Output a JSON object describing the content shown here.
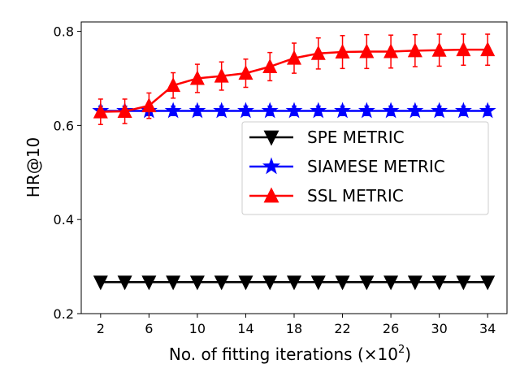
{
  "chart_data": {
    "type": "line",
    "xlabel": "No. of fitting iterations (×10",
    "xlabel_sup": "2",
    "xlabel_close": ")",
    "ylabel": "HR@10",
    "x": [
      2,
      4,
      6,
      8,
      10,
      12,
      14,
      16,
      18,
      20,
      22,
      24,
      26,
      28,
      30,
      32,
      34
    ],
    "xticks": [
      "2",
      "6",
      "10",
      "14",
      "18",
      "22",
      "26",
      "30",
      "34"
    ],
    "yticks": [
      "0.2",
      "0.4",
      "0.6",
      "0.8"
    ],
    "ylim": [
      0.2,
      0.82
    ],
    "xlim": [
      0.4,
      35.6
    ],
    "legend_position": "center-right",
    "series": [
      {
        "name": "SPE METRIC",
        "color": "#000000",
        "marker": "triangle-down",
        "values": [
          0.267,
          0.267,
          0.267,
          0.267,
          0.267,
          0.267,
          0.267,
          0.267,
          0.267,
          0.267,
          0.267,
          0.267,
          0.267,
          0.267,
          0.267,
          0.267,
          0.267
        ],
        "error": [
          0,
          0,
          0,
          0,
          0,
          0,
          0,
          0,
          0,
          0,
          0,
          0,
          0,
          0,
          0,
          0,
          0
        ]
      },
      {
        "name": "SIAMESE METRIC",
        "color": "#0000ff",
        "marker": "star",
        "values": [
          0.631,
          0.631,
          0.631,
          0.631,
          0.631,
          0.631,
          0.631,
          0.631,
          0.631,
          0.631,
          0.631,
          0.631,
          0.631,
          0.631,
          0.631,
          0.631,
          0.631
        ],
        "error": [
          0.01,
          0.01,
          0.01,
          0.01,
          0.01,
          0.01,
          0.01,
          0.01,
          0.01,
          0.01,
          0.01,
          0.01,
          0.01,
          0.01,
          0.01,
          0.01,
          0.01
        ]
      },
      {
        "name": "SSL METRIC",
        "color": "#ff0000",
        "marker": "triangle-up",
        "values": [
          0.629,
          0.63,
          0.642,
          0.685,
          0.7,
          0.705,
          0.711,
          0.725,
          0.743,
          0.753,
          0.756,
          0.757,
          0.757,
          0.759,
          0.76,
          0.761,
          0.761
        ],
        "error": [
          0.027,
          0.026,
          0.027,
          0.027,
          0.03,
          0.03,
          0.03,
          0.03,
          0.032,
          0.033,
          0.035,
          0.036,
          0.035,
          0.034,
          0.034,
          0.033,
          0.033
        ]
      }
    ]
  }
}
